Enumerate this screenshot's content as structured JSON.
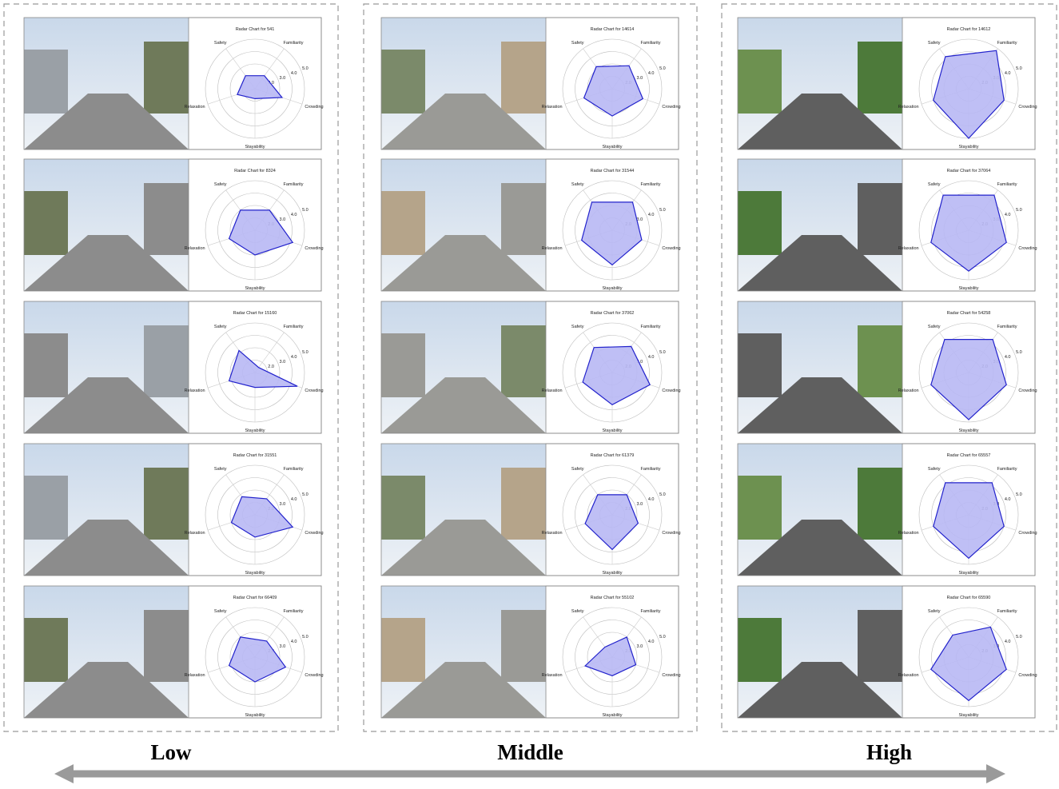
{
  "groups": [
    {
      "label": "Low",
      "charts": [
        {
          "type": "radar",
          "title": "Radar Chart for 541",
          "axes": [
            "Safety",
            "Familiarity",
            "Crowding",
            "Stayability",
            "Relaxation"
          ],
          "values": [
            2.3,
            2.3,
            3.3,
            1.8,
            2.5
          ],
          "color": "#2222cc",
          "rlim": [
            1,
            5
          ],
          "rticks": [
            {
              "value": 2,
              "label": "2.0"
            },
            {
              "value": 3,
              "label": "3.0"
            },
            {
              "value": 4,
              "label": "4.0"
            },
            {
              "value": 5,
              "label": "5.0"
            }
          ]
        },
        {
          "type": "radar",
          "title": "Radar Chart for 8324",
          "axes": [
            "Safety",
            "Familiarity",
            "Crowding",
            "Stayability",
            "Relaxation"
          ],
          "values": [
            3.0,
            3.0,
            4.2,
            3.0,
            3.2
          ],
          "color": "#2222cc",
          "rlim": [
            1,
            5
          ],
          "rticks": [
            {
              "value": 2,
              "label": "2.0"
            },
            {
              "value": 3,
              "label": "3.0"
            },
            {
              "value": 4,
              "label": "4.0"
            },
            {
              "value": 5,
              "label": "5.0"
            }
          ]
        },
        {
          "type": "radar",
          "title": "Radar Chart for 15160",
          "axes": [
            "Safety",
            "Familiarity",
            "Crowding",
            "Stayability",
            "Relaxation"
          ],
          "values": [
            3.2,
            1.5,
            4.6,
            2.2,
            3.2
          ],
          "color": "#2222cc",
          "rlim": [
            1,
            5
          ],
          "rticks": [
            {
              "value": 2,
              "label": "2.0"
            },
            {
              "value": 3,
              "label": "3.0"
            },
            {
              "value": 4,
              "label": "4.0"
            },
            {
              "value": 5,
              "label": "5.0"
            }
          ]
        },
        {
          "type": "radar",
          "title": "Radar Chart for 31551",
          "axes": [
            "Safety",
            "Familiarity",
            "Crowding",
            "Stayability",
            "Relaxation"
          ],
          "values": [
            2.8,
            2.6,
            4.2,
            2.8,
            3.0
          ],
          "color": "#2222cc",
          "rlim": [
            1,
            5
          ],
          "rticks": [
            {
              "value": 2,
              "label": "2.0"
            },
            {
              "value": 3,
              "label": "3.0"
            },
            {
              "value": 4,
              "label": "4.0"
            },
            {
              "value": 5,
              "label": "5.0"
            }
          ]
        },
        {
          "type": "radar",
          "title": "Radar Chart for 66409",
          "axes": [
            "Safety",
            "Familiarity",
            "Crowding",
            "Stayability",
            "Relaxation"
          ],
          "values": [
            3.0,
            2.6,
            3.6,
            3.0,
            3.2
          ],
          "color": "#2222cc",
          "rlim": [
            1,
            5
          ],
          "rticks": [
            {
              "value": 2,
              "label": "2.0"
            },
            {
              "value": 3,
              "label": "3.0"
            },
            {
              "value": 4,
              "label": "4.0"
            },
            {
              "value": 5,
              "label": "5.0"
            }
          ]
        }
      ]
    },
    {
      "label": "Middle",
      "charts": [
        {
          "type": "radar",
          "title": "Radar Chart for 14614",
          "axes": [
            "Safety",
            "Familiarity",
            "Crowding",
            "Stayability",
            "Relaxation"
          ],
          "values": [
            3.2,
            3.3,
            3.6,
            3.2,
            3.4
          ],
          "color": "#2222cc",
          "rlim": [
            1,
            5
          ],
          "rticks": [
            {
              "value": 2,
              "label": "2.0"
            },
            {
              "value": 3,
              "label": "3.0"
            },
            {
              "value": 4,
              "label": "4.0"
            },
            {
              "value": 5,
              "label": "5.0"
            }
          ]
        },
        {
          "type": "radar",
          "title": "Radar Chart for 31544",
          "axes": [
            "Safety",
            "Familiarity",
            "Crowding",
            "Stayability",
            "Relaxation"
          ],
          "values": [
            3.8,
            3.8,
            3.5,
            3.8,
            3.6
          ],
          "color": "#2222cc",
          "rlim": [
            1,
            5
          ],
          "rticks": [
            {
              "value": 2,
              "label": "2.0"
            },
            {
              "value": 3,
              "label": "3.0"
            },
            {
              "value": 4,
              "label": "4.0"
            },
            {
              "value": 5,
              "label": "5.0"
            }
          ]
        },
        {
          "type": "radar",
          "title": "Radar Chart for 37062",
          "axes": [
            "Safety",
            "Familiarity",
            "Crowding",
            "Stayability",
            "Relaxation"
          ],
          "values": [
            3.5,
            3.6,
            4.2,
            3.6,
            3.5
          ],
          "color": "#2222cc",
          "rlim": [
            1,
            5
          ],
          "rticks": [
            {
              "value": 2,
              "label": "2.0"
            },
            {
              "value": 3,
              "label": "3.0"
            },
            {
              "value": 4,
              "label": "4.0"
            },
            {
              "value": 5,
              "label": "5.0"
            }
          ]
        },
        {
          "type": "radar",
          "title": "Radar Chart for 61379",
          "axes": [
            "Safety",
            "Familiarity",
            "Crowding",
            "Stayability",
            "Relaxation"
          ],
          "values": [
            3.0,
            3.0,
            3.2,
            3.8,
            3.3
          ],
          "color": "#2222cc",
          "rlim": [
            1,
            5
          ],
          "rticks": [
            {
              "value": 2,
              "label": "2.0"
            },
            {
              "value": 3,
              "label": "3.0"
            },
            {
              "value": 4,
              "label": "4.0"
            },
            {
              "value": 5,
              "label": "5.0"
            }
          ]
        },
        {
          "type": "radar",
          "title": "Radar Chart for 55102",
          "axes": [
            "Safety",
            "Familiarity",
            "Crowding",
            "Stayability",
            "Relaxation"
          ],
          "values": [
            2.0,
            3.0,
            3.0,
            2.5,
            3.3
          ],
          "color": "#2222cc",
          "rlim": [
            1,
            5
          ],
          "rticks": [
            {
              "value": 2,
              "label": "2.0"
            },
            {
              "value": 3,
              "label": "3.0"
            },
            {
              "value": 4,
              "label": "4.0"
            },
            {
              "value": 5,
              "label": "5.0"
            }
          ]
        }
      ]
    },
    {
      "label": "High",
      "charts": [
        {
          "type": "radar",
          "title": "Radar Chart for 14612",
          "axes": [
            "Safety",
            "Familiarity",
            "Crowding",
            "Stayability",
            "Relaxation"
          ],
          "values": [
            4.2,
            4.8,
            4.0,
            5.0,
            4.0
          ],
          "color": "#2222cc",
          "rlim": [
            1,
            5
          ],
          "rticks": [
            {
              "value": 2,
              "label": "2.0"
            },
            {
              "value": 3,
              "label": "3.0"
            },
            {
              "value": 4,
              "label": "4.0"
            },
            {
              "value": 5,
              "label": "5.0"
            }
          ]
        },
        {
          "type": "radar",
          "title": "Radar Chart for 37064",
          "axes": [
            "Safety",
            "Familiarity",
            "Crowding",
            "Stayability",
            "Relaxation"
          ],
          "values": [
            4.5,
            4.5,
            4.2,
            4.3,
            4.2
          ],
          "color": "#2222cc",
          "rlim": [
            1,
            5
          ],
          "rticks": [
            {
              "value": 2,
              "label": "2.0"
            },
            {
              "value": 3,
              "label": "3.0"
            },
            {
              "value": 4,
              "label": "4.0"
            },
            {
              "value": 5,
              "label": "5.0"
            }
          ]
        },
        {
          "type": "radar",
          "title": "Radar Chart for 54258",
          "axes": [
            "Safety",
            "Familiarity",
            "Crowding",
            "Stayability",
            "Relaxation"
          ],
          "values": [
            4.3,
            4.3,
            4.2,
            4.8,
            4.2
          ],
          "color": "#2222cc",
          "rlim": [
            1,
            5
          ],
          "rticks": [
            {
              "value": 2,
              "label": "2.0"
            },
            {
              "value": 3,
              "label": "3.0"
            },
            {
              "value": 4,
              "label": "4.0"
            },
            {
              "value": 5,
              "label": "5.0"
            }
          ]
        },
        {
          "type": "radar",
          "title": "Radar Chart for 65557",
          "axes": [
            "Safety",
            "Familiarity",
            "Crowding",
            "Stayability",
            "Relaxation"
          ],
          "values": [
            4.2,
            4.2,
            4.0,
            4.5,
            4.0
          ],
          "color": "#2222cc",
          "rlim": [
            1,
            5
          ],
          "rticks": [
            {
              "value": 2,
              "label": "2.0"
            },
            {
              "value": 3,
              "label": "3.0"
            },
            {
              "value": 4,
              "label": "4.0"
            },
            {
              "value": 5,
              "label": "5.0"
            }
          ]
        },
        {
          "type": "radar",
          "title": "Radar Chart for 65590",
          "axes": [
            "Safety",
            "Familiarity",
            "Crowding",
            "Stayability",
            "Relaxation"
          ],
          "values": [
            3.2,
            4.0,
            4.2,
            4.5,
            4.2
          ],
          "color": "#2222cc",
          "rlim": [
            1,
            5
          ],
          "rticks": [
            {
              "value": 2,
              "label": "2.0"
            },
            {
              "value": 3,
              "label": "3.0"
            },
            {
              "value": 4,
              "label": "4.0"
            },
            {
              "value": 5,
              "label": "5.0"
            }
          ]
        }
      ]
    }
  ]
}
